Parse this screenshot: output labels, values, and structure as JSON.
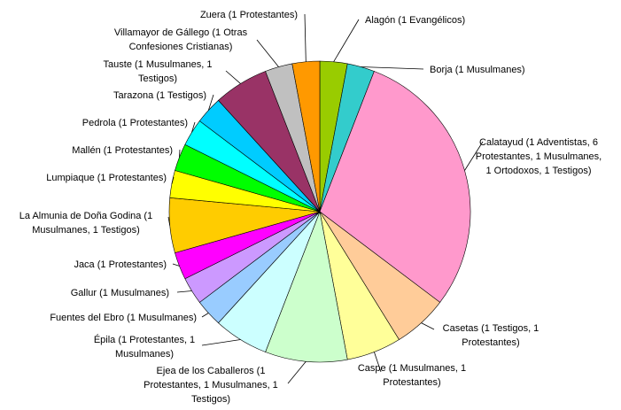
{
  "chart_data": {
    "type": "pie",
    "categories": [
      "Alagón (1 Evangélicos)",
      "Borja (1 Musulmanes)",
      "Calatayud (1 Adventistas, 6 Protestantes, 1 Musulmanes, 1 Ortodoxos, 1 Testigos)",
      "Casetas (1 Testigos, 1 Protestantes)",
      "Caspe (1 Musulmanes, 1 Protestantes)",
      "Ejea de los Caballeros (1 Protestantes, 1 Musulmanes, 1 Testigos)",
      "Épila (1 Protestantes, 1 Musulmanes)",
      "Fuentes del Ebro (1 Musulmanes)",
      "Gallur (1 Musulmanes)",
      "Jaca (1 Protestantes)",
      "La Almunia de Doña Godina (1 Musulmanes, 1 Testigos)",
      "Lumpiaque (1 Protestantes)",
      "Mallén (1 Protestantes)",
      "Pedrola (1 Protestantes)",
      "Tarazona (1 Testigos)",
      "Tauste (1 Musulmanes, 1 Testigos)",
      "Villamayor de Gállego (1 Otras Confesiones Cristianas)",
      "Zuera (1 Protestantes)"
    ],
    "values": [
      1,
      1,
      10,
      2,
      2,
      3,
      2,
      1,
      1,
      1,
      2,
      1,
      1,
      1,
      1,
      2,
      1,
      1
    ],
    "colors": [
      "#99cc00",
      "#33cccc",
      "#ff99cc",
      "#ffcc99",
      "#ffff99",
      "#ccffcc",
      "#ccffff",
      "#99ccff",
      "#cc99ff",
      "#ff00ff",
      "#ffcc00",
      "#ffff00",
      "#00ff00",
      "#00ffff",
      "#00ccff",
      "#993366",
      "#c0c0c0",
      "#ff9900"
    ]
  }
}
